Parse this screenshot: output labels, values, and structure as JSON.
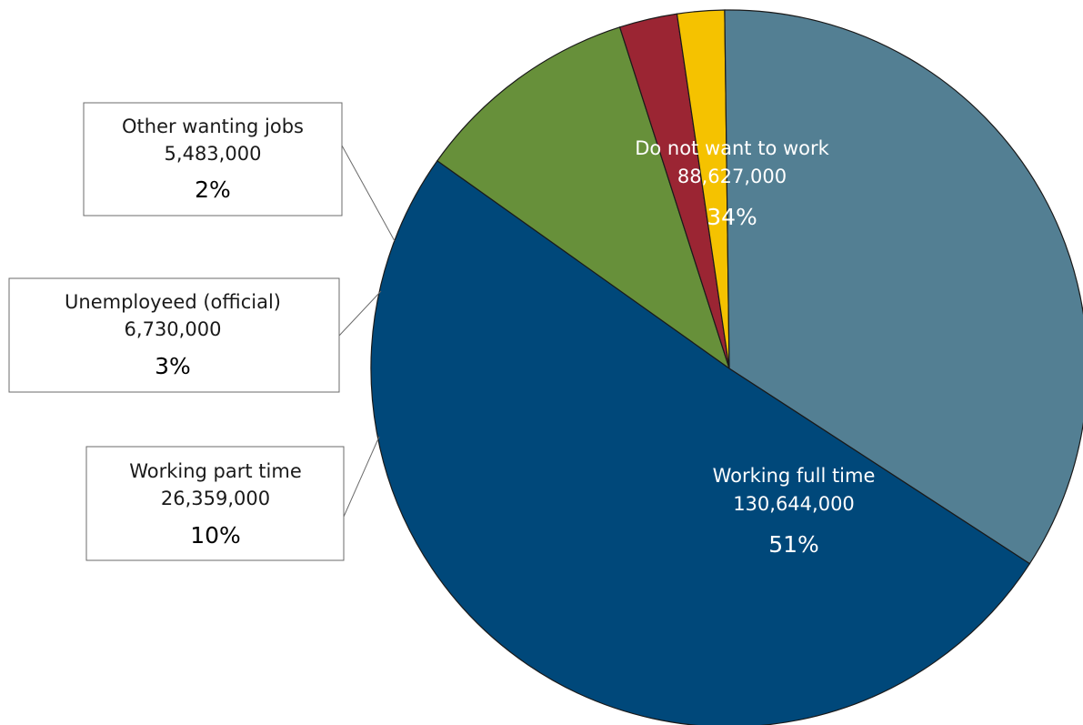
{
  "chart_data": {
    "type": "pie",
    "title": "",
    "slices": [
      {
        "label": "Working full time",
        "value": 130644000,
        "value_text": "130,644,000",
        "percent_text": "51%",
        "color": "#00487a",
        "label_style": "inside"
      },
      {
        "label": "Working part time",
        "value": 26359000,
        "value_text": "26,359,000",
        "percent_text": "10%",
        "color": "#67903a",
        "label_style": "callout"
      },
      {
        "label": "Unemployeed (official)",
        "value": 6730000,
        "value_text": "6,730,000",
        "percent_text": "3%",
        "color": "#9b2533",
        "label_style": "callout"
      },
      {
        "label": "Other wanting jobs",
        "value": 5483000,
        "value_text": "5,483,000",
        "percent_text": "2%",
        "color": "#f5c200",
        "label_style": "callout"
      },
      {
        "label": "Do not want to work",
        "value": 88627000,
        "value_text": "88,627,000",
        "percent_text": "34%",
        "color": "#537f93",
        "label_style": "inside"
      }
    ]
  }
}
